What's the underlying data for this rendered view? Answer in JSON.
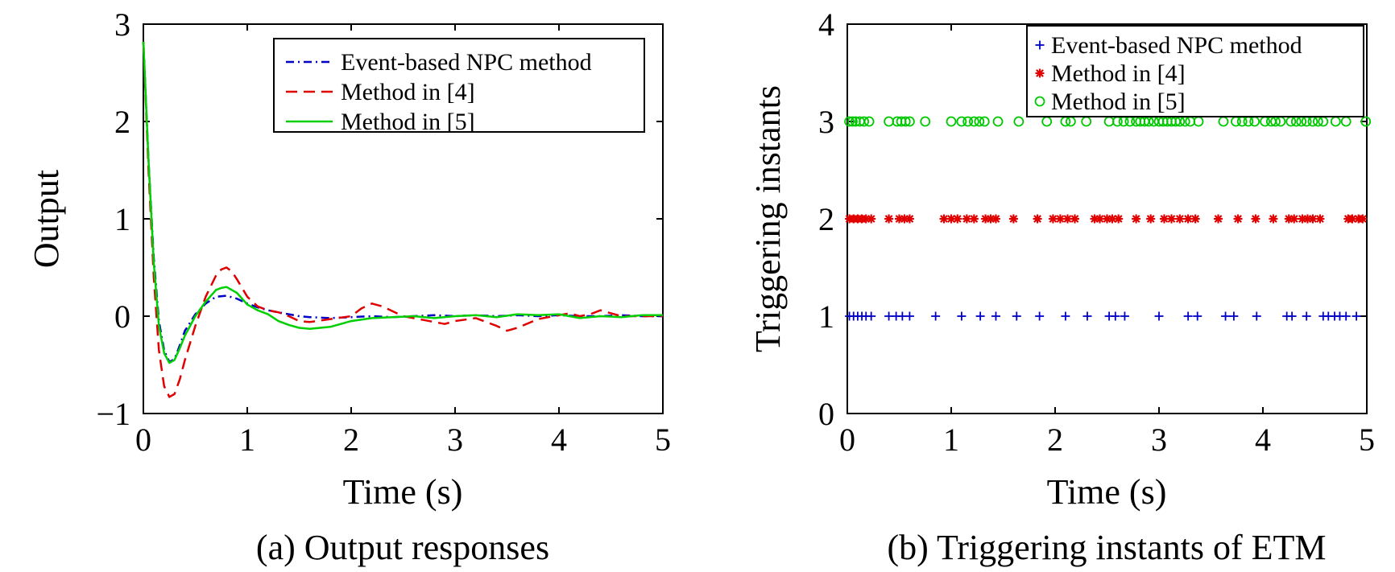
{
  "chart_data": [
    {
      "type": "line",
      "caption": "(a) Output responses",
      "xlabel": "Time (s)",
      "ylabel": "Output",
      "xlim": [
        0,
        5
      ],
      "ylim": [
        -1,
        3
      ],
      "xticks": [
        "0",
        "1",
        "2",
        "3",
        "4",
        "5"
      ],
      "yticks": [
        "−1",
        "0",
        "1",
        "2",
        "3"
      ],
      "grid": false,
      "legend_position": "top-right",
      "series": [
        {
          "name": "Event-based NPC method",
          "color": "#0000c8",
          "style": "dash-dot",
          "x": [
            0,
            0.05,
            0.1,
            0.15,
            0.2,
            0.25,
            0.3,
            0.35,
            0.4,
            0.5,
            0.6,
            0.7,
            0.8,
            0.9,
            1.0,
            1.1,
            1.2,
            1.3,
            1.4,
            1.5,
            1.6,
            1.8,
            2.0,
            2.2,
            2.4,
            2.6,
            2.8,
            3.0,
            3.2,
            3.4,
            3.6,
            3.8,
            4.0,
            4.2,
            4.4,
            4.6,
            4.8,
            5.0
          ],
          "y": [
            2.82,
            1.6,
            0.6,
            -0.05,
            -0.35,
            -0.47,
            -0.44,
            -0.3,
            -0.15,
            0.02,
            0.13,
            0.2,
            0.21,
            0.18,
            0.13,
            0.09,
            0.06,
            0.04,
            0.02,
            0.0,
            -0.01,
            -0.02,
            -0.01,
            0.0,
            -0.01,
            0.0,
            0.01,
            0.0,
            0.01,
            0.0,
            0.01,
            0.0,
            0.01,
            0.0,
            0.0,
            0.01,
            0.0,
            0.0
          ]
        },
        {
          "name": "Method in [4]",
          "color": "#e00000",
          "style": "dashed",
          "x": [
            0,
            0.05,
            0.1,
            0.15,
            0.2,
            0.25,
            0.3,
            0.35,
            0.4,
            0.5,
            0.6,
            0.7,
            0.75,
            0.8,
            0.85,
            0.9,
            1.0,
            1.1,
            1.2,
            1.3,
            1.4,
            1.5,
            1.6,
            1.8,
            2.0,
            2.1,
            2.2,
            2.3,
            2.5,
            2.7,
            2.9,
            3.0,
            3.2,
            3.4,
            3.5,
            3.6,
            3.8,
            4.0,
            4.1,
            4.2,
            4.3,
            4.4,
            4.6,
            4.8,
            5.0
          ],
          "y": [
            2.82,
            1.5,
            0.4,
            -0.35,
            -0.72,
            -0.83,
            -0.8,
            -0.65,
            -0.45,
            -0.1,
            0.2,
            0.42,
            0.48,
            0.5,
            0.46,
            0.38,
            0.2,
            0.1,
            0.06,
            0.04,
            0.0,
            -0.05,
            -0.06,
            -0.03,
            0.0,
            0.08,
            0.13,
            0.1,
            0.0,
            -0.04,
            -0.08,
            -0.05,
            -0.02,
            -0.1,
            -0.15,
            -0.12,
            -0.03,
            0.01,
            0.03,
            0.0,
            0.02,
            0.06,
            0.0,
            0.0,
            0.0
          ]
        },
        {
          "name": "Method in [5]",
          "color": "#00d000",
          "style": "solid",
          "x": [
            0,
            0.05,
            0.1,
            0.15,
            0.2,
            0.25,
            0.3,
            0.35,
            0.4,
            0.5,
            0.6,
            0.7,
            0.75,
            0.8,
            0.85,
            0.9,
            1.0,
            1.1,
            1.2,
            1.3,
            1.4,
            1.5,
            1.6,
            1.7,
            1.8,
            2.0,
            2.2,
            2.4,
            2.6,
            2.8,
            3.0,
            3.2,
            3.4,
            3.6,
            3.8,
            4.0,
            4.2,
            4.4,
            4.6,
            4.8,
            5.0
          ],
          "y": [
            2.82,
            1.6,
            0.55,
            -0.1,
            -0.38,
            -0.48,
            -0.45,
            -0.33,
            -0.2,
            0.0,
            0.15,
            0.27,
            0.29,
            0.3,
            0.27,
            0.24,
            0.12,
            0.06,
            0.02,
            -0.05,
            -0.09,
            -0.12,
            -0.13,
            -0.12,
            -0.11,
            -0.05,
            -0.02,
            -0.01,
            0.0,
            -0.02,
            0.0,
            0.01,
            -0.01,
            0.02,
            0.01,
            0.02,
            -0.02,
            0.0,
            -0.01,
            0.01,
            0.01
          ]
        }
      ]
    },
    {
      "type": "scatter",
      "caption": "(b) Triggering instants of ETM",
      "xlabel": "Time (s)",
      "ylabel": "Triggering instants",
      "xlim": [
        0,
        5
      ],
      "ylim": [
        0,
        4
      ],
      "xticks": [
        "0",
        "1",
        "2",
        "3",
        "4",
        "5"
      ],
      "yticks": [
        "0",
        "1",
        "2",
        "3",
        "4"
      ],
      "grid": false,
      "legend_position": "top-right",
      "series": [
        {
          "name": "Event-based NPC method",
          "color": "#0000c8",
          "marker": "plus",
          "y": 1,
          "x": [
            0.02,
            0.06,
            0.1,
            0.14,
            0.18,
            0.23,
            0.4,
            0.47,
            0.53,
            0.6,
            0.85,
            1.1,
            1.28,
            1.43,
            1.63,
            1.85,
            2.1,
            2.31,
            2.52,
            2.58,
            2.67,
            3.0,
            3.28,
            3.37,
            3.64,
            3.72,
            3.94,
            4.23,
            4.28,
            4.42,
            4.58,
            4.63,
            4.69,
            4.74,
            4.8,
            4.9
          ]
        },
        {
          "name": "Method in [4]",
          "color": "#e00000",
          "marker": "asterisk",
          "y": 2,
          "x": [
            0.02,
            0.06,
            0.1,
            0.14,
            0.18,
            0.23,
            0.4,
            0.5,
            0.55,
            0.6,
            0.93,
            1.0,
            1.06,
            1.15,
            1.22,
            1.33,
            1.38,
            1.43,
            1.6,
            1.83,
            1.98,
            2.05,
            2.12,
            2.19,
            2.38,
            2.43,
            2.5,
            2.55,
            2.61,
            2.78,
            2.92,
            3.05,
            3.12,
            3.2,
            3.28,
            3.35,
            3.57,
            3.76,
            3.93,
            4.1,
            4.25,
            4.3,
            4.38,
            4.43,
            4.48,
            4.55,
            4.82,
            4.86,
            4.92,
            4.96
          ]
        },
        {
          "name": "Method in [5]",
          "color": "#00c800",
          "marker": "circle",
          "y": 3,
          "x": [
            0.02,
            0.05,
            0.08,
            0.12,
            0.16,
            0.21,
            0.4,
            0.48,
            0.52,
            0.56,
            0.6,
            0.75,
            1.0,
            1.1,
            1.16,
            1.22,
            1.27,
            1.32,
            1.45,
            1.65,
            1.92,
            2.1,
            2.15,
            2.3,
            2.52,
            2.6,
            2.66,
            2.72,
            2.78,
            2.82,
            2.86,
            2.9,
            2.95,
            3.0,
            3.04,
            3.08,
            3.12,
            3.16,
            3.2,
            3.25,
            3.3,
            3.38,
            3.62,
            3.74,
            3.8,
            3.86,
            3.92,
            4.02,
            4.08,
            4.12,
            4.17,
            4.27,
            4.32,
            4.37,
            4.42,
            4.48,
            4.53,
            4.58,
            4.7,
            4.8,
            4.99
          ]
        }
      ]
    }
  ]
}
